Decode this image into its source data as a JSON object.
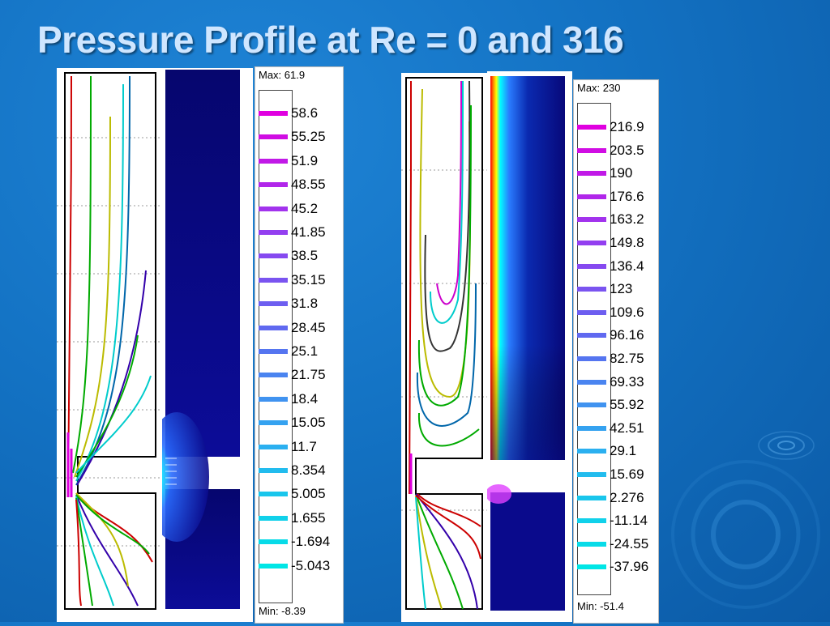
{
  "slide": {
    "title": "Pressure Profile at Re = 0 and 316"
  },
  "legend_left": {
    "max": "Max: 61.9",
    "min": "Min: -8.39",
    "values": [
      "58.6",
      "55.25",
      "51.9",
      "48.55",
      "45.2",
      "41.85",
      "38.5",
      "35.15",
      "31.8",
      "28.45",
      "25.1",
      "21.75",
      "18.4",
      "15.05",
      "11.7",
      "8.354",
      "5.005",
      "1.655",
      "-1.694",
      "-5.043"
    ]
  },
  "legend_right": {
    "max": "Max: 230",
    "min": "Min: -51.4",
    "values": [
      "216.9",
      "203.5",
      "190",
      "176.6",
      "163.2",
      "149.8",
      "136.4",
      "123",
      "109.6",
      "96.16",
      "82.75",
      "69.33",
      "55.92",
      "42.51",
      "29.1",
      "15.69",
      "2.276",
      "-11.14",
      "-24.55",
      "-37.96"
    ]
  },
  "colors": {
    "background": "#1372c3",
    "title": "#cfe6ff",
    "field_dark_blue": "#0a0a8c",
    "legend_top": "#e000e0",
    "legend_bottom": "#00e6e6"
  }
}
